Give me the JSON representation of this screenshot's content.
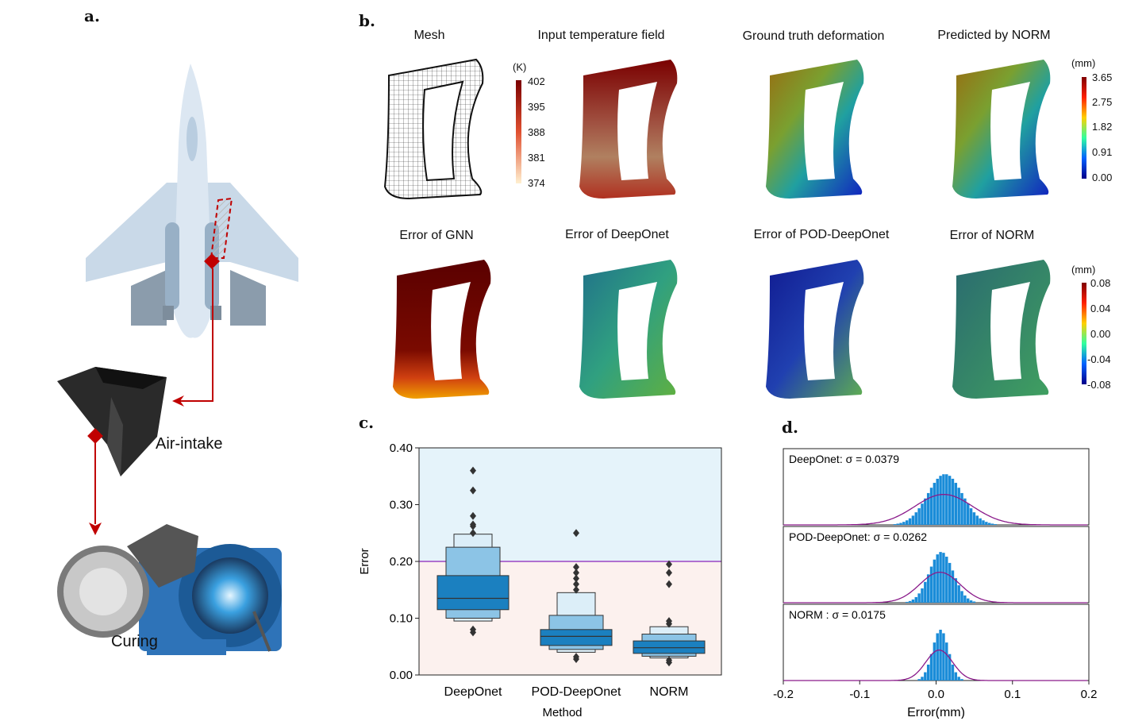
{
  "panels": {
    "a": "a.",
    "b": "b.",
    "c": "c.",
    "d": "d."
  },
  "panel_a": {
    "air_intake": "Air-intake",
    "curing": "Curing"
  },
  "panel_b": {
    "row1_titles": [
      "Mesh",
      "Input temperature field",
      "Ground truth deformation",
      "Predicted by NORM"
    ],
    "row2_titles": [
      "Error of GNN",
      "Error of DeepOnet",
      "Error of POD-DeepOnet",
      "Error of NORM"
    ],
    "temp_colorbar": {
      "unit": "(K)",
      "ticks": [
        "402",
        "395",
        "388",
        "381",
        "374"
      ]
    },
    "deform_colorbar": {
      "unit": "(mm)",
      "ticks": [
        "3.65",
        "2.75",
        "1.82",
        "0.91",
        "0.00"
      ]
    },
    "error_colorbar": {
      "unit": "(mm)",
      "ticks": [
        "0.08",
        "0.04",
        "0.00",
        "-0.04",
        "-0.08"
      ]
    }
  },
  "chart_data": [
    {
      "type": "boxen",
      "xlabel": "Method",
      "ylabel": "Error",
      "ylim": [
        0,
        0.4
      ],
      "yticks": [
        "0.00",
        "0.10",
        "0.20",
        "0.30",
        "0.40"
      ],
      "threshold": 0.2,
      "categories": [
        "DeepOnet",
        "POD-DeepOnet",
        "NORM"
      ],
      "median": [
        0.135,
        0.068,
        0.048
      ],
      "boxes": [
        [
          [
            0.115,
            0.175
          ],
          [
            0.1,
            0.225
          ],
          [
            0.095,
            0.248
          ]
        ],
        [
          [
            0.052,
            0.08
          ],
          [
            0.045,
            0.105
          ],
          [
            0.04,
            0.145
          ]
        ],
        [
          [
            0.038,
            0.06
          ],
          [
            0.033,
            0.072
          ],
          [
            0.03,
            0.085
          ]
        ]
      ],
      "outliers": [
        [
          0.075,
          0.08,
          0.262,
          0.325,
          0.36,
          0.25,
          0.265,
          0.28
        ],
        [
          0.028,
          0.032,
          0.15,
          0.16,
          0.17,
          0.18,
          0.19,
          0.25
        ],
        [
          0.022,
          0.026,
          0.09,
          0.095,
          0.16,
          0.18,
          0.195
        ]
      ]
    },
    {
      "type": "histogram",
      "xlabel": "Error(mm)",
      "xlim": [
        -0.2,
        0.2
      ],
      "xticks": [
        "-0.2",
        "-0.1",
        "0.0",
        "0.1",
        "0.2"
      ],
      "series": [
        {
          "name": "DeepOnet",
          "label": "DeepOnet: σ =  0.0379",
          "sigma": 0.0379,
          "mean": 0.01
        },
        {
          "name": "POD-DeepOnet",
          "label": "POD-DeepOnet: σ =  0.0262",
          "sigma": 0.0262,
          "mean": 0.005
        },
        {
          "name": "NORM",
          "label": "NORM  : σ =  0.0175",
          "sigma": 0.0175,
          "mean": 0.004
        }
      ]
    }
  ],
  "colors": {
    "accent_red": "#c00000",
    "box_blue": "#1f77b4",
    "hist_blue": "#1a8cd8",
    "fit_purple": "#8a1a8a",
    "threshold": "#b070d0"
  }
}
